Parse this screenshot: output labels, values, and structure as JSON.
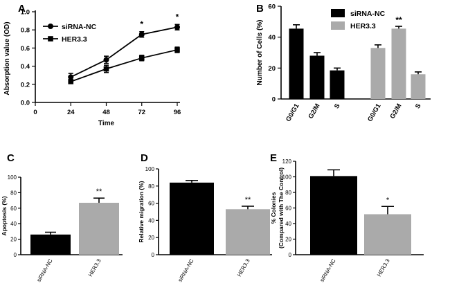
{
  "chart_data": [
    {
      "panel": "A",
      "type": "line",
      "xlabel": "Time",
      "ylabel": "Absorption value (OD)",
      "xlim": [
        0,
        96
      ],
      "ylim": [
        0,
        1.0
      ],
      "xticks": [
        "0",
        "24",
        "48",
        "72",
        "96"
      ],
      "yticks": [
        "0.0",
        "0.2",
        "0.4",
        "0.6",
        "0.8",
        "1.0"
      ],
      "x": [
        24,
        48,
        72,
        96
      ],
      "legend": "top-left",
      "series": [
        {
          "name": "siRNA-NC",
          "marker": "circle",
          "values": [
            0.28,
            0.47,
            0.75,
            0.83
          ],
          "errors": [
            0.04,
            0.04,
            0.03,
            0.03
          ]
        },
        {
          "name": "HER3.3",
          "marker": "square",
          "values": [
            0.23,
            0.37,
            0.49,
            0.58
          ],
          "errors": [
            0.02,
            0.04,
            0.03,
            0.03
          ]
        }
      ],
      "annotations": [
        {
          "x": 72,
          "text": "*"
        },
        {
          "x": 96,
          "text": "*"
        }
      ]
    },
    {
      "panel": "B",
      "type": "bar",
      "ylabel": "Number of Cells (%)",
      "ylim": [
        0,
        60
      ],
      "yticks": [
        "0",
        "20",
        "40",
        "60"
      ],
      "legend": "top-right",
      "series": [
        {
          "name": "siRNA-NC",
          "color": "#000000",
          "categories": [
            "G0/G1",
            "G2/M",
            "S"
          ],
          "values": [
            45.5,
            28,
            18.5
          ],
          "errors": [
            2.5,
            2,
            1.5
          ]
        },
        {
          "name": "HER3.3",
          "color": "#aaaaaa",
          "categories": [
            "G0/G1",
            "G2/M",
            "S"
          ],
          "values": [
            33,
            45.5,
            16
          ],
          "errors": [
            2,
            1.5,
            1.5
          ]
        }
      ],
      "annotations": [
        {
          "category": "G2/M",
          "series": "HER3.3",
          "text": "**"
        }
      ]
    },
    {
      "panel": "C",
      "type": "bar",
      "ylabel": "Apoptosis (%)",
      "ylim": [
        0,
        100
      ],
      "yticks": [
        "0",
        "20",
        "40",
        "60",
        "80",
        "100"
      ],
      "categories": [
        "siRNA-NC",
        "HER3.3"
      ],
      "values": [
        26,
        67
      ],
      "errors": [
        3,
        6
      ],
      "colors": [
        "#000000",
        "#aaaaaa"
      ],
      "annotations": [
        {
          "category": "HER3.3",
          "text": "**"
        }
      ]
    },
    {
      "panel": "D",
      "type": "bar",
      "ylabel": "Relative migration (%)",
      "ylim": [
        0,
        100
      ],
      "yticks": [
        "0",
        "20",
        "40",
        "60",
        "80",
        "100"
      ],
      "categories": [
        "siRNA-NC",
        "HER3.3"
      ],
      "values": [
        84,
        53
      ],
      "errors": [
        2.5,
        3.5
      ],
      "colors": [
        "#000000",
        "#aaaaaa"
      ],
      "annotations": [
        {
          "category": "HER3.3",
          "text": "**"
        }
      ]
    },
    {
      "panel": "E",
      "type": "bar",
      "ylabel": "% Colonies",
      "ylabel2": "(Compared with The Control)",
      "ylim": [
        0,
        120
      ],
      "yticks": [
        "0",
        "20",
        "40",
        "60",
        "80",
        "100",
        "120"
      ],
      "categories": [
        "siRNA-NC",
        "HER3.3"
      ],
      "values": [
        101,
        52
      ],
      "errors": [
        8,
        10
      ],
      "colors": [
        "#000000",
        "#aaaaaa"
      ],
      "annotations": [
        {
          "category": "HER3.3",
          "text": "*"
        }
      ]
    }
  ]
}
